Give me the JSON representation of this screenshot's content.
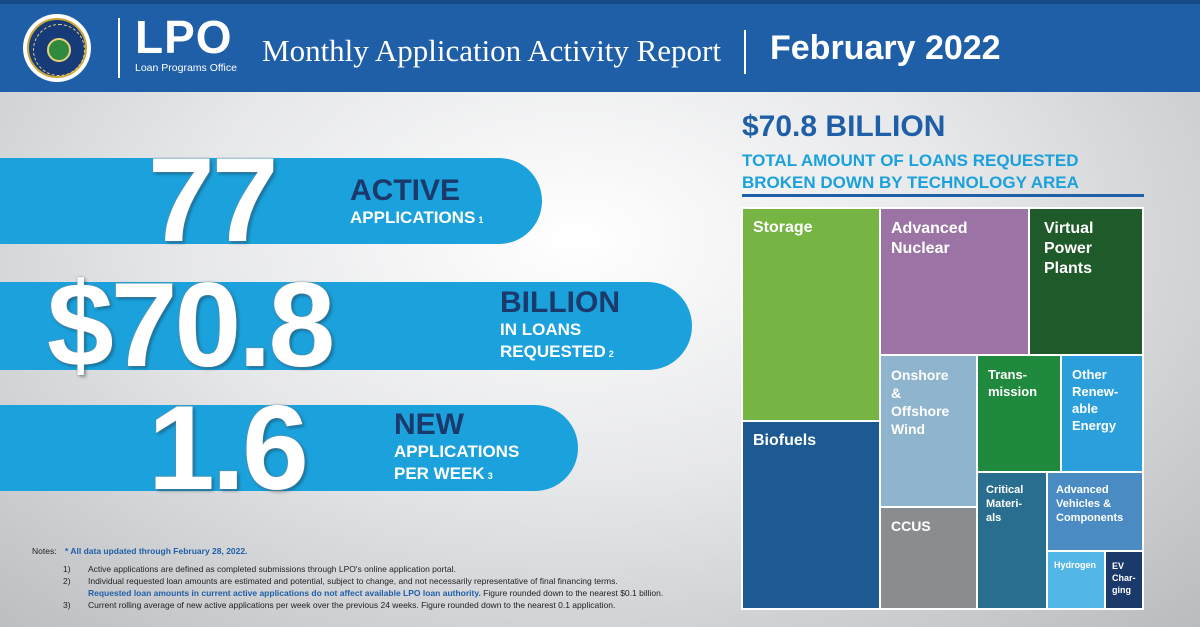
{
  "header": {
    "logo_text": "LPO",
    "logo_subtitle": "Loan Programs Office",
    "title": "Monthly Application Activity Report",
    "month": "February 2022",
    "seal_icon": "doe-seal-icon",
    "colors": {
      "bar": "#1f5fa7"
    }
  },
  "stats": [
    {
      "number": "77",
      "headline": "ACTIVE",
      "detail": "APPLICATIONS",
      "footnote": "1"
    },
    {
      "number": "$70.8",
      "headline": "BILLION",
      "detail1": "IN LOANS",
      "detail2": "REQUESTED",
      "footnote": "2"
    },
    {
      "number": "1.6",
      "headline": "NEW",
      "detail1": "APPLICATIONS",
      "detail2": "PER WEEK",
      "footnote": "3"
    }
  ],
  "notes": {
    "label": "Notes:",
    "all_data": "* All data updated through February 28, 2022.",
    "items": [
      {
        "num": "1)",
        "text": "Active applications are defined as completed submissions through LPO's online application portal."
      },
      {
        "num": "2)",
        "text": "Individual requested loan amounts are estimated and potential, subject to change, and not necessarily representative of final financing terms."
      },
      {
        "num": "",
        "text_blue": "Requested loan amounts in current active applications do not affect available LPO loan authority.",
        "text_tail": " Figure rounded down to the nearest $0.1 billion."
      },
      {
        "num": "3)",
        "text": "Current rolling average of new active applications per week over the previous 24 weeks. Figure rounded down to the nearest 0.1 application."
      }
    ]
  },
  "breakdown": {
    "total": "$70.8 BILLION",
    "subtitle1": "TOTAL AMOUNT OF LOANS REQUESTED",
    "subtitle2": "BROKEN DOWN BY TECHNOLOGY AREA",
    "tiles": {
      "storage": "Storage",
      "biofuels": "Biofuels",
      "advanced_nuclear": [
        "Advanced",
        "Nuclear"
      ],
      "virtual_power_plants": [
        "Virtual",
        "Power",
        "Plants"
      ],
      "wind": [
        "Onshore",
        "&",
        "Offshore",
        "Wind"
      ],
      "ccus": "CCUS",
      "transmission": [
        "Trans-",
        "mission"
      ],
      "other_renewable": [
        "Other",
        "Renew-",
        "able",
        "Energy"
      ],
      "critical_materials": [
        "Critical",
        "Materi-",
        "als"
      ],
      "advanced_vehicles": [
        "Advanced",
        "Vehicles &",
        "Components"
      ],
      "hydrogen": "Hydrogen",
      "ev_charging": [
        "EV",
        "Char-",
        "ging"
      ]
    }
  }
}
